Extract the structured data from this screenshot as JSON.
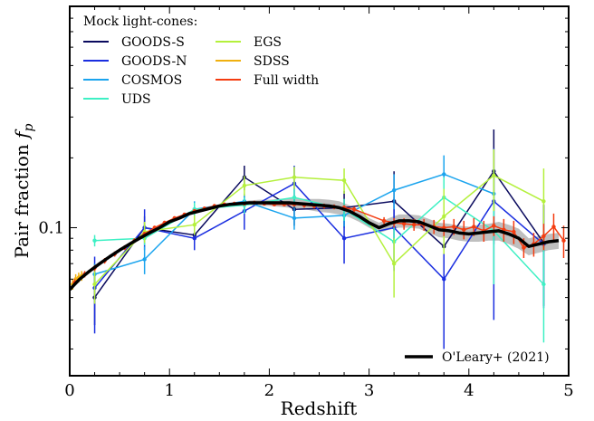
{
  "chart_data": {
    "type": "line",
    "xlabel": "Redshift",
    "ylabel_prefix": "Pair fraction ",
    "ylabel_symbol": "f",
    "ylabel_subscript": "p",
    "yscale": "log",
    "xlim": [
      0,
      5
    ],
    "ylim": [
      0.023,
      0.9
    ],
    "x_ticks": [
      0,
      1,
      2,
      3,
      4,
      5
    ],
    "x_tick_labels": [
      "0",
      "1",
      "2",
      "3",
      "4",
      "5"
    ],
    "y_ticks": [
      0.1
    ],
    "y_tick_labels": [
      "0.1"
    ],
    "grid": false,
    "legend_title": "Mock light-cones:",
    "legend_placement": "top-left",
    "series": [
      {
        "name": "GOODS-S",
        "color": "#0a0a5e",
        "x": [
          0.25,
          0.75,
          1.25,
          1.75,
          2.25,
          2.75,
          3.25,
          3.75,
          4.25,
          4.75
        ],
        "y": [
          0.05,
          0.1,
          0.093,
          0.165,
          0.12,
          0.122,
          0.13,
          0.083,
          0.175,
          0.086
        ],
        "err": [
          0.012,
          0.012,
          0.012,
          0.02,
          0.018,
          0.022,
          0.045,
          0.05,
          0.09,
          0.04
        ]
      },
      {
        "name": "GOODS-N",
        "color": "#1a2ee0",
        "x": [
          0.25,
          0.75,
          1.25,
          1.75,
          2.25,
          2.75,
          3.25,
          3.75,
          4.25,
          4.75
        ],
        "y": [
          0.055,
          0.1,
          0.09,
          0.118,
          0.155,
          0.09,
          0.1,
          0.06,
          0.13,
          0.085
        ],
        "err": [
          0.02,
          0.02,
          0.01,
          0.02,
          0.03,
          0.02,
          0.035,
          0.03,
          0.09,
          0.04
        ]
      },
      {
        "name": "COSMOS",
        "color": "#1aa4ee",
        "x": [
          0.25,
          0.75,
          1.25,
          1.75,
          2.25,
          2.75,
          3.25,
          3.75,
          4.25
        ],
        "y": [
          0.063,
          0.073,
          0.12,
          0.13,
          0.11,
          0.113,
          0.145,
          0.17,
          0.14
        ],
        "err": [
          0.007,
          0.01,
          0.01,
          0.01,
          0.012,
          0.012,
          0.025,
          0.035,
          0.04
        ]
      },
      {
        "name": "UDS",
        "color": "#3ef0c4",
        "x": [
          0.25,
          0.75,
          1.25,
          1.75,
          2.25,
          2.75,
          3.25,
          3.75,
          4.25,
          4.75
        ],
        "y": [
          0.088,
          0.09,
          0.12,
          0.125,
          0.135,
          0.12,
          0.087,
          0.135,
          0.097,
          0.057
        ],
        "err": [
          0.005,
          0.006,
          0.008,
          0.01,
          0.012,
          0.013,
          0.02,
          0.03,
          0.04,
          0.025
        ]
      },
      {
        "name": "EGS",
        "color": "#b4f03c",
        "x": [
          0.25,
          0.75,
          1.25,
          1.75,
          2.25,
          2.75,
          3.25,
          3.75,
          4.25,
          4.75
        ],
        "y": [
          0.057,
          0.096,
          0.103,
          0.152,
          0.165,
          0.16,
          0.07,
          0.112,
          0.168,
          0.13
        ],
        "err": [
          0.01,
          0.01,
          0.01,
          0.015,
          0.018,
          0.02,
          0.02,
          0.035,
          0.05,
          0.05
        ]
      },
      {
        "name": "SDSS",
        "color": "#f0b010",
        "x": [
          0.03,
          0.06,
          0.09,
          0.12
        ],
        "y": [
          0.057,
          0.06,
          0.061,
          0.062
        ],
        "err": [
          0.003,
          0.003,
          0.003,
          0.003
        ]
      },
      {
        "name": "Full width",
        "color": "#f43c10",
        "x": [
          0.05,
          0.15,
          0.25,
          0.35,
          0.45,
          0.55,
          0.65,
          0.75,
          0.85,
          0.95,
          1.05,
          1.15,
          1.25,
          1.35,
          1.45,
          1.55,
          1.65,
          1.75,
          1.85,
          1.95,
          2.05,
          2.15,
          2.25,
          2.35,
          2.45,
          2.55,
          2.65,
          2.75,
          2.85,
          3.15,
          3.25,
          3.35,
          3.45,
          3.55,
          3.65,
          3.75,
          3.85,
          3.95,
          4.05,
          4.15,
          4.25,
          4.35,
          4.45,
          4.55,
          4.65,
          4.75,
          4.85,
          4.95
        ],
        "y": [
          0.058,
          0.063,
          0.067,
          0.072,
          0.077,
          0.082,
          0.088,
          0.094,
          0.1,
          0.105,
          0.11,
          0.114,
          0.118,
          0.121,
          0.124,
          0.126,
          0.127,
          0.127,
          0.128,
          0.127,
          0.126,
          0.126,
          0.126,
          0.125,
          0.124,
          0.124,
          0.123,
          0.122,
          0.12,
          0.107,
          0.105,
          0.104,
          0.103,
          0.103,
          0.101,
          0.1,
          0.101,
          0.098,
          0.101,
          0.097,
          0.102,
          0.098,
          0.096,
          0.082,
          0.085,
          0.092,
          0.101,
          0.088
        ],
        "err": [
          0.002,
          0.002,
          0.002,
          0.002,
          0.002,
          0.002,
          0.002,
          0.002,
          0.002,
          0.002,
          0.002,
          0.002,
          0.002,
          0.002,
          0.002,
          0.002,
          0.002,
          0.002,
          0.002,
          0.002,
          0.002,
          0.002,
          0.002,
          0.003,
          0.003,
          0.003,
          0.003,
          0.003,
          0.003,
          0.004,
          0.005,
          0.006,
          0.006,
          0.006,
          0.007,
          0.008,
          0.008,
          0.009,
          0.009,
          0.01,
          0.01,
          0.011,
          0.011,
          0.008,
          0.01,
          0.012,
          0.014,
          0.014
        ]
      }
    ],
    "reference": {
      "name": "O'Leary+ (2021)",
      "color": "#000000",
      "band_color": "#b4b4b4",
      "legend_placement": "bottom-right",
      "x": [
        0.0,
        0.05,
        0.1,
        0.2,
        0.3,
        0.4,
        0.5,
        0.6,
        0.7,
        0.8,
        0.9,
        1.0,
        1.1,
        1.2,
        1.3,
        1.4,
        1.5,
        1.6,
        1.7,
        1.8,
        1.9,
        2.0,
        2.1,
        2.2,
        2.3,
        2.4,
        2.5,
        2.6,
        2.7,
        2.8,
        2.9,
        3.0,
        3.1,
        3.2,
        3.3,
        3.4,
        3.5,
        3.6,
        3.7,
        3.8,
        3.9,
        4.0,
        4.1,
        4.2,
        4.3,
        4.4,
        4.5,
        4.6,
        4.7,
        4.8,
        4.9
      ],
      "y": [
        0.054,
        0.057,
        0.06,
        0.065,
        0.07,
        0.075,
        0.08,
        0.085,
        0.09,
        0.095,
        0.1,
        0.106,
        0.11,
        0.115,
        0.118,
        0.121,
        0.124,
        0.126,
        0.127,
        0.128,
        0.128,
        0.128,
        0.128,
        0.128,
        0.127,
        0.126,
        0.125,
        0.124,
        0.122,
        0.118,
        0.112,
        0.105,
        0.1,
        0.104,
        0.107,
        0.107,
        0.106,
        0.102,
        0.098,
        0.097,
        0.095,
        0.094,
        0.095,
        0.096,
        0.097,
        0.094,
        0.09,
        0.083,
        0.085,
        0.087,
        0.088
      ],
      "lower": [
        0.053,
        0.056,
        0.059,
        0.064,
        0.069,
        0.074,
        0.079,
        0.084,
        0.089,
        0.094,
        0.099,
        0.104,
        0.108,
        0.113,
        0.116,
        0.119,
        0.122,
        0.124,
        0.125,
        0.125,
        0.124,
        0.124,
        0.123,
        0.122,
        0.121,
        0.119,
        0.117,
        0.116,
        0.114,
        0.111,
        0.106,
        0.1,
        0.095,
        0.098,
        0.1,
        0.1,
        0.099,
        0.095,
        0.091,
        0.09,
        0.088,
        0.087,
        0.087,
        0.088,
        0.088,
        0.085,
        0.081,
        0.076,
        0.078,
        0.08,
        0.081
      ],
      "upper": [
        0.055,
        0.058,
        0.061,
        0.066,
        0.071,
        0.076,
        0.081,
        0.086,
        0.091,
        0.096,
        0.101,
        0.108,
        0.112,
        0.117,
        0.12,
        0.123,
        0.126,
        0.128,
        0.129,
        0.131,
        0.132,
        0.132,
        0.133,
        0.134,
        0.133,
        0.133,
        0.133,
        0.132,
        0.13,
        0.125,
        0.118,
        0.11,
        0.105,
        0.11,
        0.114,
        0.114,
        0.113,
        0.109,
        0.105,
        0.104,
        0.102,
        0.101,
        0.103,
        0.104,
        0.106,
        0.103,
        0.099,
        0.09,
        0.092,
        0.094,
        0.095
      ]
    }
  }
}
